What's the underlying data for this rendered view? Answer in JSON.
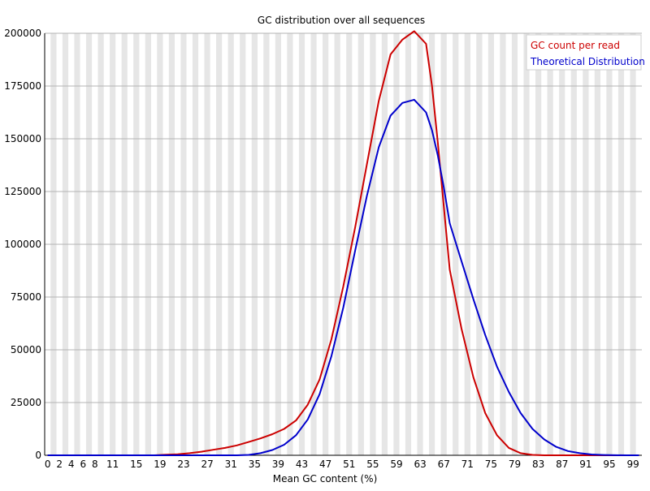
{
  "chart_data": {
    "type": "line",
    "title": "GC distribution over all sequences",
    "xlabel": "Mean GC content (%)",
    "ylabel": "",
    "xlim": [
      0,
      101
    ],
    "ylim": [
      0,
      200000
    ],
    "y_ticks": [
      0,
      25000,
      50000,
      75000,
      100000,
      125000,
      150000,
      175000,
      200000
    ],
    "x_tick_labels": [
      0,
      2,
      4,
      6,
      8,
      11,
      15,
      19,
      23,
      27,
      31,
      35,
      39,
      43,
      47,
      51,
      55,
      59,
      63,
      67,
      71,
      75,
      79,
      83,
      87,
      91,
      95,
      99
    ],
    "x": [
      0,
      2,
      4,
      6,
      8,
      10,
      12,
      14,
      16,
      18,
      20,
      22,
      24,
      26,
      28,
      30,
      32,
      34,
      36,
      38,
      40,
      42,
      44,
      46,
      48,
      50,
      52,
      54,
      56,
      58,
      60,
      62,
      64,
      65,
      66,
      67,
      68,
      70,
      72,
      74,
      76,
      78,
      80,
      82,
      84,
      86,
      88,
      90,
      92,
      94,
      96,
      98,
      100
    ],
    "legend_position": "top-right",
    "grid": true,
    "series": [
      {
        "name": "GC count per read",
        "color": "#cc0000",
        "values": [
          0,
          0,
          0,
          0,
          0,
          0,
          0,
          0,
          0,
          0,
          300,
          500,
          1000,
          1700,
          2600,
          3500,
          4700,
          6300,
          8000,
          10000,
          12500,
          16500,
          24000,
          36000,
          55000,
          80000,
          108000,
          138000,
          168000,
          190000,
          197000,
          201000,
          195000,
          175000,
          148000,
          118000,
          88000,
          60000,
          37000,
          20000,
          9500,
          3500,
          1000,
          200,
          0,
          0,
          0,
          0,
          0,
          0,
          0,
          0,
          0
        ]
      },
      {
        "name": "Theoretical Distribution",
        "color": "#0000cc",
        "values": [
          0,
          0,
          0,
          0,
          0,
          0,
          0,
          0,
          0,
          0,
          0,
          0,
          0,
          0,
          0,
          0,
          0,
          200,
          1000,
          2500,
          5000,
          9500,
          17000,
          29000,
          47000,
          70000,
          97000,
          123000,
          146000,
          161000,
          167000,
          168500,
          162500,
          154000,
          142000,
          127000,
          110000,
          92000,
          74000,
          57000,
          42000,
          30000,
          20000,
          12500,
          7500,
          4000,
          2000,
          1000,
          400,
          150,
          50,
          0,
          0
        ]
      }
    ]
  }
}
